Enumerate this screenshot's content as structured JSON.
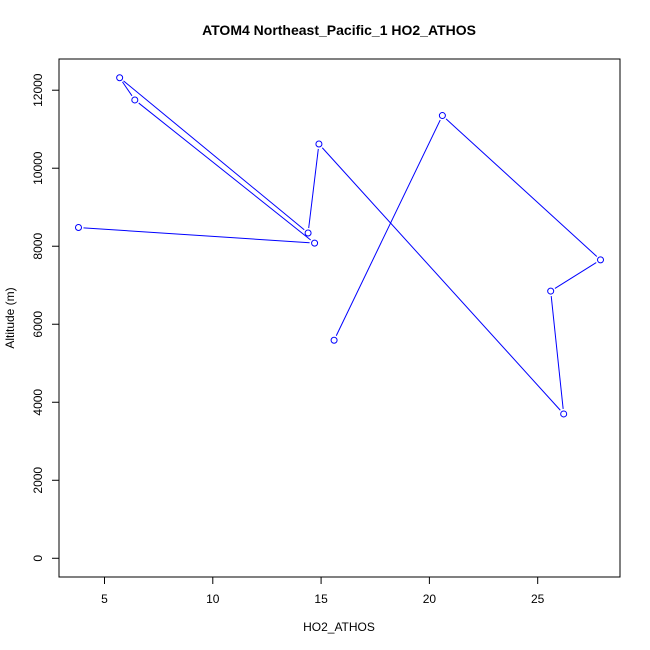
{
  "chart_data": {
    "type": "line",
    "title": "ATOM4 Northeast_Pacific_1 HO2_ATHOS",
    "xlabel": "HO2_ATHOS",
    "ylabel": "Altitude (m)",
    "xlim": [
      2.9,
      28.8
    ],
    "ylim": [
      -480,
      12800
    ],
    "xticks": [
      5,
      10,
      15,
      20,
      25
    ],
    "yticks": [
      0,
      2000,
      4000,
      6000,
      8000,
      10000,
      12000
    ],
    "series": [
      {
        "color": "#0000ff",
        "marker": "open-circle",
        "points": [
          {
            "x": 15.6,
            "y": 5590
          },
          {
            "x": 20.6,
            "y": 11350
          },
          {
            "x": 27.9,
            "y": 7650
          },
          {
            "x": 25.6,
            "y": 6850
          },
          {
            "x": 26.2,
            "y": 3700
          },
          {
            "x": 14.9,
            "y": 10620
          },
          {
            "x": 14.4,
            "y": 8340
          },
          {
            "x": 5.7,
            "y": 12320
          },
          {
            "x": 6.4,
            "y": 11750
          },
          {
            "x": 14.7,
            "y": 8080
          },
          {
            "x": 3.8,
            "y": 8480
          }
        ]
      }
    ]
  }
}
